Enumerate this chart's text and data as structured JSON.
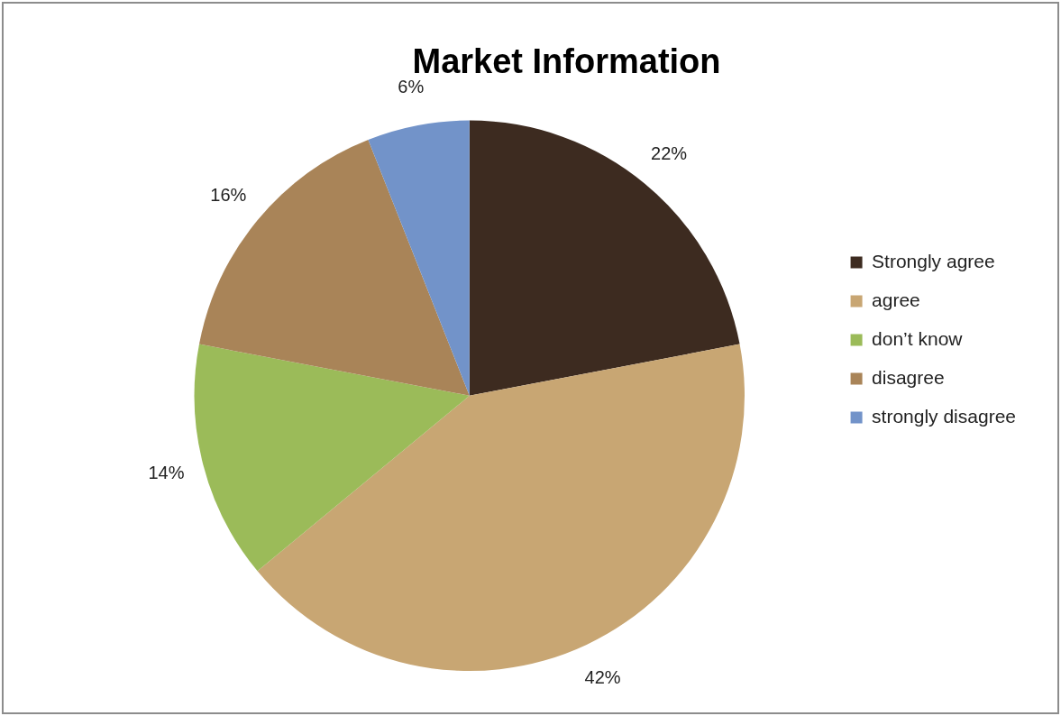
{
  "chart_data": {
    "type": "pie",
    "title": "Market Information",
    "categories": [
      "Strongly agree",
      "agree",
      "don’t know",
      "disagree",
      "strongly disagree"
    ],
    "values": [
      22,
      42,
      14,
      16,
      6
    ],
    "colors": [
      "#3d2b20",
      "#c8a673",
      "#9bbb59",
      "#a98458",
      "#7293c9"
    ],
    "value_labels": [
      "22%",
      "42%",
      "14%",
      "16%",
      "6%"
    ],
    "legend": "right"
  }
}
